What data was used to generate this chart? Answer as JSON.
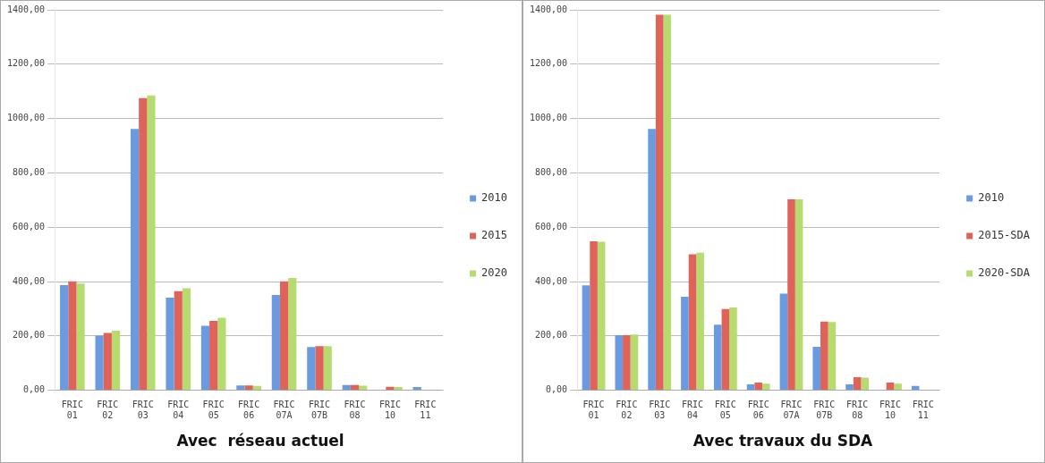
{
  "chart_data": [
    {
      "type": "bar",
      "title": "Avec  réseau actuel",
      "categories": [
        "FRIC 01",
        "FRIC 02",
        "FRIC 03",
        "FRIC 04",
        "FRIC 05",
        "FRIC 06",
        "FRIC 07A",
        "FRIC 07B",
        "FRIC 08",
        "FRIC 10",
        "FRIC 11"
      ],
      "series": [
        {
          "name": "2010",
          "color": "#6a9be0",
          "values": [
            387,
            201,
            962,
            341,
            237,
            18,
            351,
            159,
            19,
            0,
            12
          ]
        },
        {
          "name": "2015",
          "color": "#e0635a",
          "values": [
            401,
            211,
            1075,
            365,
            255,
            18,
            401,
            162,
            19,
            13,
            0
          ]
        },
        {
          "name": "2020",
          "color": "#b6db6e",
          "values": [
            393,
            219,
            1085,
            375,
            267,
            16,
            413,
            162,
            17,
            12,
            0
          ]
        }
      ],
      "ylim": [
        0,
        1400
      ],
      "yticks": [
        {
          "value": 0,
          "label": "0,00"
        },
        {
          "value": 200,
          "label": "200,00"
        },
        {
          "value": 400,
          "label": "400,00"
        },
        {
          "value": 600,
          "label": "600,00"
        },
        {
          "value": 800,
          "label": "800,00"
        },
        {
          "value": 1000,
          "label": "1000,00"
        },
        {
          "value": 1200,
          "label": "1200,00"
        },
        {
          "value": 1400,
          "label": "1400,00"
        }
      ],
      "grid": "y",
      "legend": "right"
    },
    {
      "type": "bar",
      "title": "Avec travaux du SDA",
      "categories": [
        "FRIC 01",
        "FRIC 02",
        "FRIC 03",
        "FRIC 04",
        "FRIC 05",
        "FRIC 06",
        "FRIC 07A",
        "FRIC 07B",
        "FRIC 08",
        "FRIC 10",
        "FRIC 11"
      ],
      "series": [
        {
          "name": "2010",
          "color": "#6a9be0",
          "values": [
            386,
            203,
            962,
            344,
            241,
            22,
            356,
            160,
            22,
            0,
            16
          ]
        },
        {
          "name": "2015-SDA",
          "color": "#e0635a",
          "values": [
            548,
            203,
            1382,
            500,
            299,
            28,
            703,
            253,
            48,
            28,
            0
          ]
        },
        {
          "name": "2020-SDA",
          "color": "#b6db6e",
          "values": [
            546,
            205,
            1382,
            506,
            305,
            24,
            703,
            251,
            46,
            24,
            0
          ]
        }
      ],
      "ylim": [
        0,
        1400
      ],
      "yticks": [
        {
          "value": 0,
          "label": "0,00"
        },
        {
          "value": 200,
          "label": "200,00"
        },
        {
          "value": 400,
          "label": "400,00"
        },
        {
          "value": 600,
          "label": "600,00"
        },
        {
          "value": 800,
          "label": "800,00"
        },
        {
          "value": 1000,
          "label": "1000,00"
        },
        {
          "value": 1200,
          "label": "1200,00"
        },
        {
          "value": 1400,
          "label": "1400,00"
        }
      ],
      "grid": "y",
      "legend": "right"
    }
  ]
}
